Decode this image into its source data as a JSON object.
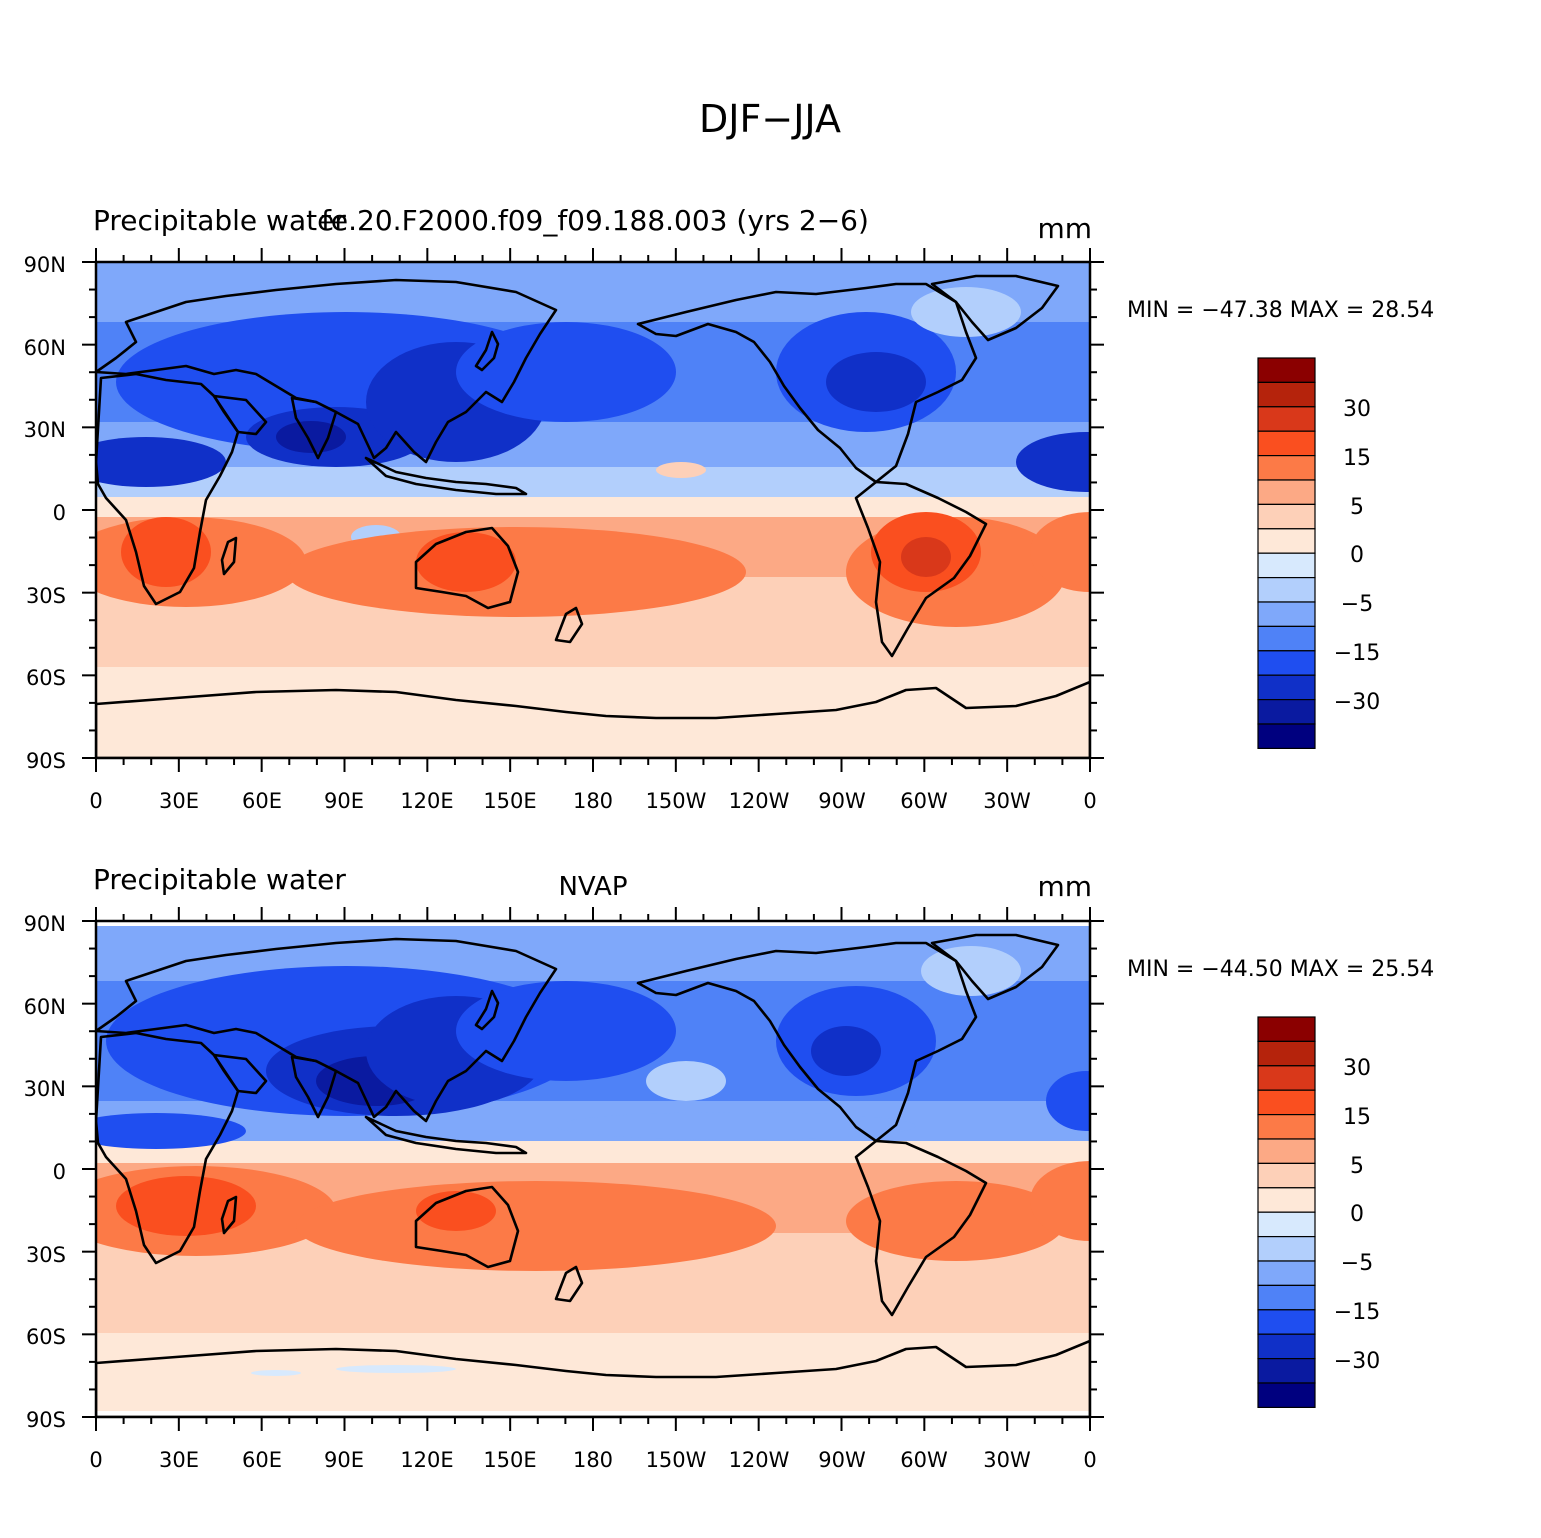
{
  "figure": {
    "title": "DJF−JJA"
  },
  "panels": [
    {
      "left_title": "Precipitable water",
      "center_title": "fe.20.F2000.f09_f09.188.003 (yrs 2−6)",
      "units": "mm",
      "min_max_text": "MIN = −47.38  MAX =   28.54",
      "min": -47.38,
      "max": 28.54
    },
    {
      "left_title": "Precipitable water",
      "center_title": "NVAP",
      "units": "mm",
      "min_max_text": "MIN = −44.50  MAX =   25.54",
      "min": -44.5,
      "max": 25.54
    }
  ],
  "axes": {
    "lat_labels": [
      "90N",
      "60N",
      "30N",
      "0",
      "30S",
      "60S",
      "90S"
    ],
    "lon_labels": [
      "0",
      "30E",
      "60E",
      "90E",
      "120E",
      "150E",
      "180",
      "150W",
      "120W",
      "90W",
      "60W",
      "30W",
      "0"
    ]
  },
  "colorbar": {
    "labels": [
      "30",
      "15",
      "5",
      "0",
      "−5",
      "−15",
      "−30"
    ],
    "colors": [
      "#8b0000",
      "#b5230c",
      "#d9381a",
      "#fa4f1f",
      "#fc7a47",
      "#fca985",
      "#fdd0b8",
      "#fee8d8",
      "#d7e9fd",
      "#b2cffc",
      "#7fa8fa",
      "#4f82f7",
      "#1f4ef0",
      "#1030c8",
      "#0a1aa0",
      "#00007f"
    ]
  }
}
